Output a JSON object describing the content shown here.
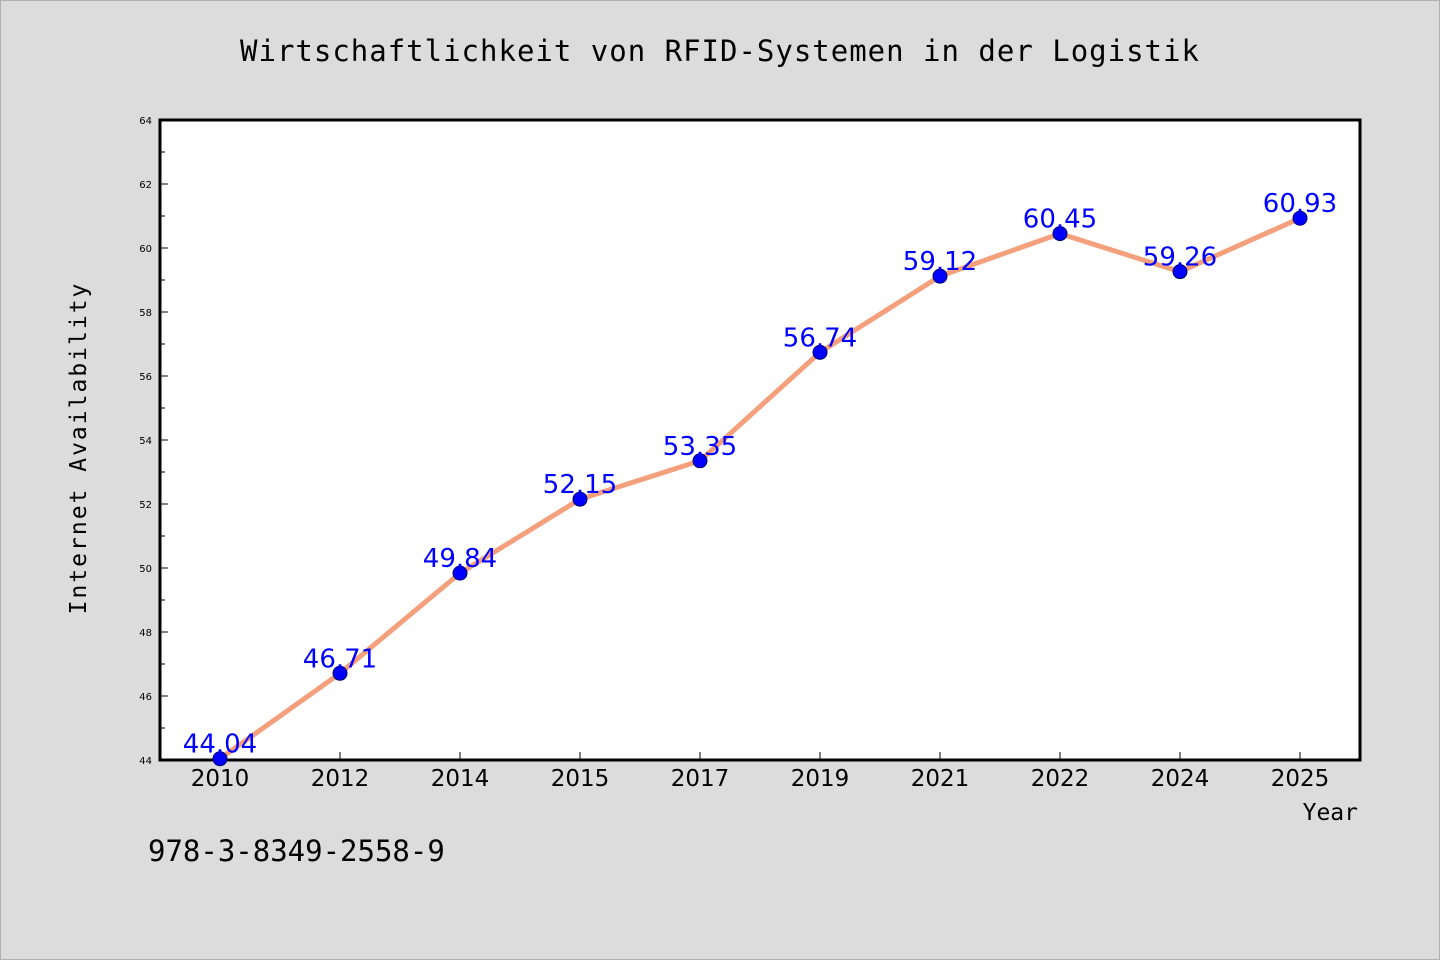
{
  "chart_data": {
    "type": "line",
    "title": "Wirtschaftlichkeit von RFID-Systemen in der Logistik",
    "xlabel": "Year",
    "ylabel": "Internet Availability",
    "categories": [
      "2010",
      "2012",
      "2014",
      "2015",
      "2017",
      "2019",
      "2021",
      "2022",
      "2024",
      "2025"
    ],
    "series": [
      {
        "values": [
          44.04,
          46.71,
          49.84,
          52.15,
          53.35,
          56.74,
          59.12,
          60.45,
          59.26,
          60.93
        ],
        "data_labels": [
          "44.04",
          "46.71",
          "49.84",
          "52.15",
          "53.35",
          "56.74",
          "59.12",
          "60.45",
          "59.26",
          "60.93"
        ],
        "line_color": "#f4a07c",
        "marker_color": "#0000ff",
        "label_color": "#0000ff"
      }
    ],
    "ylim": [
      44,
      64
    ],
    "yticks": [
      "44",
      "46",
      "48",
      "50",
      "52",
      "54",
      "56",
      "58",
      "60",
      "62",
      "64"
    ],
    "grid": false,
    "legend": "none"
  },
  "footer": {
    "isbn": "978-3-8349-2558-9"
  }
}
